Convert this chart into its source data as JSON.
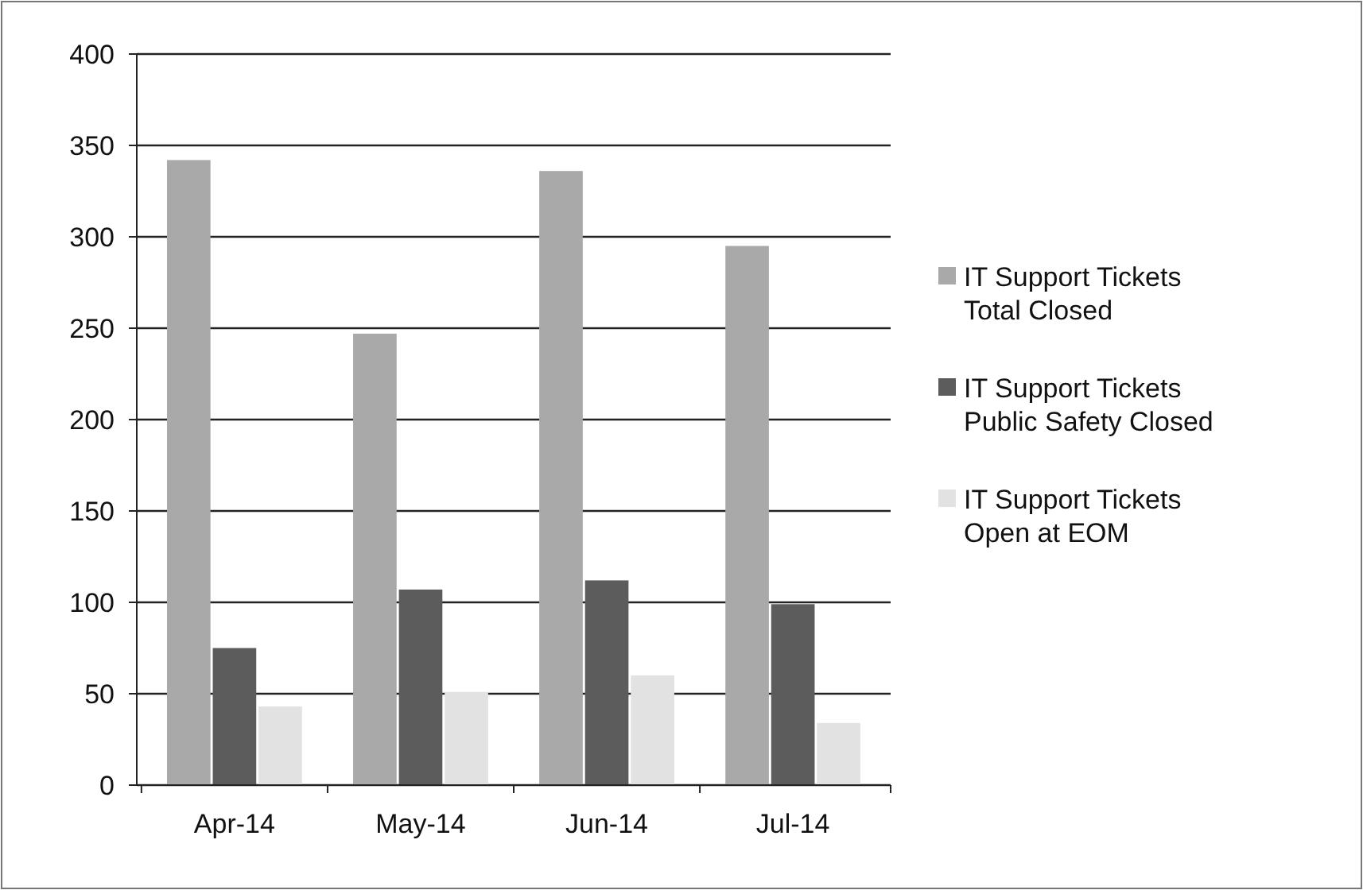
{
  "chart_data": {
    "type": "bar",
    "categories": [
      "Apr-14",
      "May-14",
      "Jun-14",
      "Jul-14"
    ],
    "series": [
      {
        "name": "IT Support Tickets Total Closed",
        "color": "#a9a9a9",
        "values": [
          342,
          247,
          336,
          295
        ]
      },
      {
        "name": "IT Support Tickets Public Safety Closed",
        "color": "#5c5c5c",
        "values": [
          75,
          107,
          112,
          99
        ]
      },
      {
        "name": "IT Support Tickets Open at EOM",
        "color": "#e2e2e2",
        "values": [
          43,
          51,
          60,
          34
        ]
      }
    ],
    "ylim": [
      0,
      400
    ],
    "yticks": [
      0,
      50,
      100,
      150,
      200,
      250,
      300,
      350,
      400
    ],
    "grid": "y",
    "legend": "right"
  }
}
